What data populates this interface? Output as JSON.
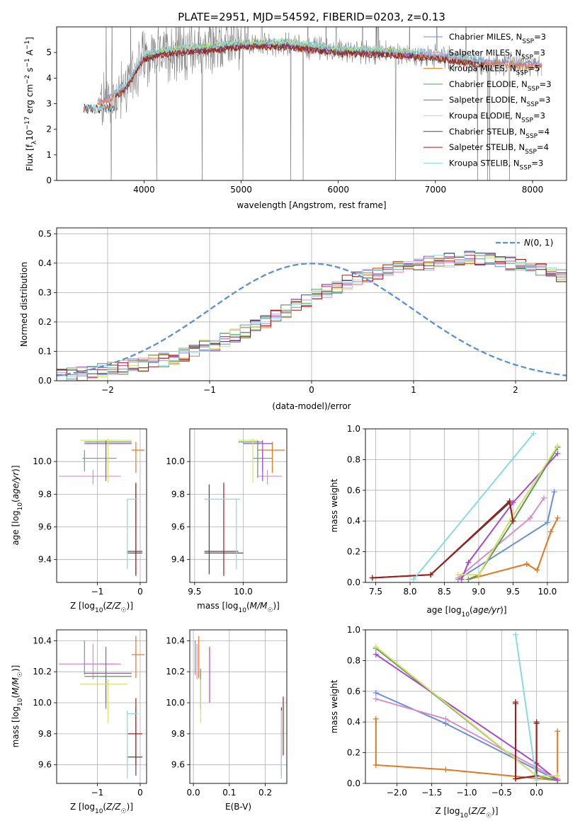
{
  "title": "PLATE=2951, MJD=54592, FIBERID=0203, z=0.13",
  "colors": {
    "Chabrier MILES": "#6a8fd6",
    "Salpeter MILES": "#d68ecb",
    "Kroupa MILES": "#e0781e",
    "Chabrier ELODIE": "#5a9a5a",
    "Salpeter ELODIE": "#a64ac9",
    "Kroupa ELODIE": "#d4e06a",
    "Chabrier STELIB": "#4a4a4a",
    "Salpeter STELIB": "#a21c1c",
    "Kroupa STELIB": "#86dbe0",
    "data": "#808080",
    "gaussian": "#5b8fd6"
  },
  "chart_data": [
    {
      "type": "line",
      "xlabel": "wavelength [Angstrom, rest frame]",
      "ylabel": "Flux [f_λ 10^-17 erg cm^-2 s^-1 A^-1]",
      "xlim": [
        3100,
        8350
      ],
      "ylim": [
        0,
        6
      ],
      "xticks": [
        4000,
        5000,
        6000,
        7000,
        8000
      ],
      "yticks": [
        0,
        1,
        2,
        3,
        4,
        5
      ],
      "grid": false,
      "legend_position": "top-right",
      "legend": [
        {
          "name": "Chabrier MILES",
          "n": "3"
        },
        {
          "name": "Salpeter MILES",
          "n": "3"
        },
        {
          "name": "Kroupa MILES",
          "n": "5"
        },
        {
          "name": "Chabrier ELODIE",
          "n": "3"
        },
        {
          "name": "Salpeter ELODIE",
          "n": "3"
        },
        {
          "name": "Kroupa ELODIE",
          "n": "3"
        },
        {
          "name": "Chabrier STELIB",
          "n": "4"
        },
        {
          "name": "Salpeter STELIB",
          "n": "4"
        },
        {
          "name": "Kroupa STELIB",
          "n": "3"
        }
      ],
      "data_range": [
        3550,
        8100
      ],
      "model_envelope": {
        "x": [
          3400,
          3600,
          3800,
          4000,
          4200,
          4500,
          4800,
          5000,
          5500,
          6000,
          6500,
          7000,
          7500,
          8100
        ],
        "y": [
          3.0,
          3.1,
          3.6,
          4.8,
          5.0,
          5.1,
          5.2,
          5.3,
          5.3,
          5.05,
          5.0,
          4.85,
          4.6,
          4.5
        ]
      }
    },
    {
      "type": "histogram",
      "xlabel": "(data-model)/error",
      "ylabel": "Normed distribution",
      "xlim": [
        -2.5,
        2.5
      ],
      "ylim": [
        0,
        0.52
      ],
      "xticks": [
        -2,
        -1,
        0,
        1,
        2
      ],
      "yticks": [
        0.0,
        0.1,
        0.2,
        0.3,
        0.4,
        0.5
      ],
      "grid": true,
      "legend_position": "top-right",
      "legend": [
        {
          "name": "N(0,1)"
        }
      ],
      "bin_width": 0.1,
      "base_density": [
        0.015,
        0.02,
        0.025,
        0.03,
        0.035,
        0.04,
        0.045,
        0.05,
        0.055,
        0.065,
        0.07,
        0.08,
        0.09,
        0.1,
        0.115,
        0.125,
        0.14,
        0.155,
        0.17,
        0.185,
        0.205,
        0.22,
        0.24,
        0.255,
        0.27,
        0.29,
        0.305,
        0.32,
        0.335,
        0.35,
        0.36,
        0.37,
        0.38,
        0.385,
        0.39,
        0.395,
        0.4,
        0.405,
        0.41,
        0.415,
        0.42,
        0.415,
        0.41,
        0.405,
        0.4,
        0.395,
        0.385,
        0.375,
        0.37,
        0.36,
        0.35,
        0.34,
        0.33,
        0.32,
        0.31,
        0.3,
        0.285,
        0.27,
        0.255,
        0.24,
        0.225,
        0.21,
        0.195,
        0.18,
        0.165,
        0.15,
        0.135,
        0.12,
        0.11,
        0.1,
        0.09,
        0.08,
        0.07,
        0.06,
        0.055,
        0.05,
        0.045,
        0.04,
        0.035,
        0.03
      ]
    },
    {
      "type": "errorbar",
      "xlabel": "Z [log10(Z/Z☉)]",
      "ylabel": "age  [log10(age/yr)]",
      "xlim": [
        -1.95,
        0.15
      ],
      "ylim": [
        9.26,
        10.2
      ],
      "xticks": [
        -1,
        0
      ],
      "yticks": [
        9.4,
        9.6,
        9.8,
        10.0
      ],
      "grid": true,
      "points": [
        {
          "model": "Chabrier MILES",
          "x": -1.3,
          "xlo": -1.35,
          "xhi": -0.55,
          "y": 10.02,
          "ylo": 9.94,
          "yhi": 10.07
        },
        {
          "model": "Salpeter MILES",
          "x": -1.1,
          "xlo": -1.9,
          "xhi": -0.45,
          "y": 9.91,
          "ylo": 9.86,
          "yhi": 9.95
        },
        {
          "model": "Kroupa MILES",
          "x": -0.1,
          "xlo": -0.2,
          "xhi": 0.1,
          "y": 10.07,
          "ylo": 9.93,
          "yhi": 10.12
        },
        {
          "model": "Chabrier ELODIE",
          "x": -0.8,
          "xlo": -1.3,
          "xhi": -0.2,
          "y": 10.12,
          "ylo": 9.9,
          "yhi": 10.13
        },
        {
          "model": "Salpeter ELODIE",
          "x": -0.8,
          "xlo": -1.3,
          "xhi": -0.2,
          "y": 10.11,
          "ylo": 9.88,
          "yhi": 10.13
        },
        {
          "model": "Kroupa ELODIE",
          "x": -0.75,
          "xlo": -1.4,
          "xhi": -0.2,
          "y": 10.13,
          "ylo": 9.87,
          "yhi": 10.14
        },
        {
          "model": "Chabrier STELIB",
          "x": -0.1,
          "xlo": -0.3,
          "xhi": 0.05,
          "y": 9.45,
          "ylo": 9.31,
          "yhi": 9.86
        },
        {
          "model": "Salpeter STELIB",
          "x": -0.1,
          "xlo": -0.3,
          "xhi": 0.05,
          "y": 9.44,
          "ylo": 9.3,
          "yhi": 9.87
        },
        {
          "model": "Kroupa STELIB",
          "x": -0.3,
          "xlo": -0.3,
          "xhi": -0.05,
          "y": 9.77,
          "ylo": 9.34,
          "yhi": 9.77
        }
      ]
    },
    {
      "type": "errorbar",
      "xlabel": "mass [log10(M/M☉)]",
      "ylabel": "",
      "xlim": [
        9.45,
        10.45
      ],
      "ylim": [
        9.26,
        10.2
      ],
      "xticks": [
        9.5,
        10.0
      ],
      "yticks": [
        9.4,
        9.6,
        9.8,
        10.0
      ],
      "grid": true,
      "points": [
        {
          "model": "Chabrier MILES",
          "x": 10.2,
          "xlo": 10.1,
          "xhi": 10.3,
          "y": 10.02,
          "ylo": 9.94,
          "yhi": 10.07
        },
        {
          "model": "Salpeter MILES",
          "x": 10.25,
          "xlo": 10.15,
          "xhi": 10.4,
          "y": 9.91,
          "ylo": 9.86,
          "yhi": 9.95
        },
        {
          "model": "Kroupa MILES",
          "x": 10.3,
          "xlo": 10.15,
          "xhi": 10.43,
          "y": 10.07,
          "ylo": 9.93,
          "yhi": 10.12
        },
        {
          "model": "Chabrier ELODIE",
          "x": 10.15,
          "xlo": 9.95,
          "xhi": 10.2,
          "y": 10.12,
          "ylo": 9.9,
          "yhi": 10.13
        },
        {
          "model": "Salpeter ELODIE",
          "x": 10.2,
          "xlo": 10.0,
          "xhi": 10.3,
          "y": 10.11,
          "ylo": 9.88,
          "yhi": 10.13
        },
        {
          "model": "Kroupa ELODIE",
          "x": 10.1,
          "xlo": 9.95,
          "xhi": 10.15,
          "y": 10.13,
          "ylo": 9.87,
          "yhi": 10.14
        },
        {
          "model": "Chabrier STELIB",
          "x": 9.65,
          "xlo": 9.6,
          "xhi": 9.95,
          "y": 9.45,
          "ylo": 9.31,
          "yhi": 9.86
        },
        {
          "model": "Salpeter STELIB",
          "x": 9.8,
          "xlo": 9.6,
          "xhi": 10.0,
          "y": 9.44,
          "ylo": 9.3,
          "yhi": 9.87
        },
        {
          "model": "Kroupa STELIB",
          "x": 9.93,
          "xlo": 9.6,
          "xhi": 9.97,
          "y": 9.77,
          "ylo": 9.34,
          "yhi": 9.77
        }
      ]
    },
    {
      "type": "line",
      "xlabel": "age  [log10(age/yr)]",
      "ylabel": "mass weight",
      "xlim": [
        7.35,
        10.3
      ],
      "ylim": [
        0.0,
        1.0
      ],
      "xticks": [
        7.5,
        8.0,
        8.5,
        9.0,
        9.5,
        10.0
      ],
      "yticks": [
        0.0,
        0.2,
        0.4,
        0.6,
        0.8,
        1.0
      ],
      "grid": true,
      "series": [
        {
          "model": "Chabrier MILES",
          "x": [
            8.7,
            10.0,
            10.1
          ],
          "y": [
            0.02,
            0.39,
            0.59
          ]
        },
        {
          "model": "Salpeter MILES",
          "x": [
            8.7,
            9.75,
            9.95
          ],
          "y": [
            0.03,
            0.42,
            0.55
          ]
        },
        {
          "model": "Kroupa MILES",
          "x": [
            8.85,
            9.7,
            9.85,
            10.05,
            10.15
          ],
          "y": [
            0.02,
            0.12,
            0.08,
            0.33,
            0.42
          ]
        },
        {
          "model": "Chabrier ELODIE",
          "x": [
            8.85,
            9.0,
            9.5,
            10.15
          ],
          "y": [
            0.02,
            0.05,
            0.4,
            0.88
          ]
        },
        {
          "model": "Salpeter ELODIE",
          "x": [
            8.75,
            8.85,
            9.5,
            10.15
          ],
          "y": [
            0.02,
            0.13,
            0.52,
            0.84
          ]
        },
        {
          "model": "Kroupa ELODIE",
          "x": [
            8.7,
            9.0,
            9.45,
            10.15
          ],
          "y": [
            0.05,
            0.05,
            0.4,
            0.89
          ]
        },
        {
          "model": "Chabrier STELIB",
          "x": [
            7.45,
            8.3,
            9.45,
            9.5
          ],
          "y": [
            0.03,
            0.05,
            0.52,
            0.4
          ]
        },
        {
          "model": "Salpeter STELIB",
          "x": [
            7.45,
            8.3,
            9.45,
            9.5
          ],
          "y": [
            0.03,
            0.05,
            0.53,
            0.4
          ]
        },
        {
          "model": "Kroupa STELIB",
          "x": [
            8.05,
            9.8
          ],
          "y": [
            0.02,
            0.97
          ]
        }
      ]
    },
    {
      "type": "errorbar",
      "xlabel": "Z [log10(Z/Z☉)]",
      "ylabel": "mass [log10(M/M☉)]",
      "xlim": [
        -1.95,
        0.15
      ],
      "ylim": [
        9.48,
        10.47
      ],
      "xticks": [
        -1,
        0
      ],
      "yticks": [
        9.6,
        9.8,
        10.0,
        10.2,
        10.4
      ],
      "grid": true,
      "points": [
        {
          "model": "Chabrier MILES",
          "x": -1.3,
          "xlo": -1.35,
          "xhi": -0.55,
          "y": 10.25,
          "ylo": 10.18,
          "yhi": 10.4
        },
        {
          "model": "Salpeter MILES",
          "x": -1.1,
          "xlo": -1.9,
          "xhi": -0.45,
          "y": 10.25,
          "ylo": 10.15,
          "yhi": 10.38
        },
        {
          "model": "Kroupa MILES",
          "x": -0.1,
          "xlo": -0.2,
          "xhi": 0.1,
          "y": 10.31,
          "ylo": 10.16,
          "yhi": 10.43
        },
        {
          "model": "Chabrier ELODIE",
          "x": -0.8,
          "xlo": -1.3,
          "xhi": -0.2,
          "y": 10.17,
          "ylo": 9.96,
          "yhi": 10.22
        },
        {
          "model": "Salpeter ELODIE",
          "x": -0.8,
          "xlo": -1.3,
          "xhi": -0.2,
          "y": 10.19,
          "ylo": 10.0,
          "yhi": 10.36
        },
        {
          "model": "Kroupa ELODIE",
          "x": -0.75,
          "xlo": -1.4,
          "xhi": -0.3,
          "y": 10.12,
          "ylo": 9.87,
          "yhi": 10.15
        },
        {
          "model": "Chabrier STELIB",
          "x": -0.1,
          "xlo": -0.3,
          "xhi": 0.05,
          "y": 9.65,
          "ylo": 9.53,
          "yhi": 9.97
        },
        {
          "model": "Salpeter STELIB",
          "x": -0.1,
          "xlo": -0.3,
          "xhi": 0.05,
          "y": 9.8,
          "ylo": 9.6,
          "yhi": 10.03
        },
        {
          "model": "Kroupa STELIB",
          "x": -0.3,
          "xlo": -0.3,
          "xhi": -0.05,
          "y": 9.93,
          "ylo": 9.51,
          "yhi": 9.95
        }
      ]
    },
    {
      "type": "errorbar",
      "xlabel": "E(B-V)",
      "ylabel": "",
      "xlim": [
        -0.01,
        0.26
      ],
      "ylim": [
        9.48,
        10.47
      ],
      "xticks": [
        0.0,
        0.1,
        0.2
      ],
      "yticks": [
        9.6,
        9.8,
        10.0,
        10.2,
        10.4
      ],
      "grid": true,
      "points": [
        {
          "model": "Chabrier MILES",
          "x": 0.005,
          "y": 10.25,
          "ylo": 10.18,
          "yhi": 10.4
        },
        {
          "model": "Salpeter MILES",
          "x": 0.01,
          "y": 10.25,
          "ylo": 10.15,
          "yhi": 10.38
        },
        {
          "model": "Kroupa MILES",
          "x": 0.015,
          "y": 10.31,
          "ylo": 10.16,
          "yhi": 10.43
        },
        {
          "model": "Chabrier ELODIE",
          "x": 0.02,
          "y": 10.17,
          "ylo": 9.96,
          "yhi": 10.22
        },
        {
          "model": "Salpeter ELODIE",
          "x": 0.045,
          "y": 10.19,
          "ylo": 10.0,
          "yhi": 10.36
        },
        {
          "model": "Kroupa ELODIE",
          "x": 0.02,
          "y": 10.12,
          "ylo": 9.87,
          "yhi": 10.15
        },
        {
          "model": "Chabrier STELIB",
          "x": 0.245,
          "y": 9.65,
          "ylo": 9.53,
          "yhi": 9.97
        },
        {
          "model": "Salpeter STELIB",
          "x": 0.25,
          "y": 9.8,
          "ylo": 9.66,
          "yhi": 10.04
        },
        {
          "model": "Kroupa STELIB",
          "x": 0.245,
          "y": 9.93,
          "ylo": 9.51,
          "yhi": 9.95
        }
      ]
    },
    {
      "type": "line",
      "xlabel": "Z [log10(Z/Z☉)]",
      "ylabel": "mass weight",
      "xlim": [
        -2.45,
        0.45
      ],
      "ylim": [
        0.0,
        1.0
      ],
      "xticks": [
        -2.0,
        -1.5,
        -1.0,
        -0.5,
        0.0
      ],
      "yticks": [
        0.0,
        0.2,
        0.4,
        0.6,
        0.8,
        1.0
      ],
      "grid": true,
      "series": [
        {
          "model": "Chabrier MILES",
          "x": [
            -2.3,
            -1.3,
            0.3
          ],
          "y": [
            0.59,
            0.39,
            0.02
          ]
        },
        {
          "model": "Salpeter MILES",
          "x": [
            -2.3,
            -1.3,
            0.3
          ],
          "y": [
            0.55,
            0.42,
            0.03
          ]
        },
        {
          "model": "Kroupa MILES",
          "x": [
            -2.3,
            -2.3,
            -1.3,
            0.3,
            0.3
          ],
          "y": [
            0.42,
            0.12,
            0.09,
            0.02,
            0.34
          ]
        },
        {
          "model": "Chabrier ELODIE",
          "x": [
            -2.3,
            0.0,
            0.3
          ],
          "y": [
            0.88,
            0.05,
            0.02
          ]
        },
        {
          "model": "Salpeter ELODIE",
          "x": [
            -2.3,
            0.0,
            0.3
          ],
          "y": [
            0.84,
            0.13,
            0.02
          ]
        },
        {
          "model": "Kroupa ELODIE",
          "x": [
            -2.3,
            0.0,
            0.3
          ],
          "y": [
            0.89,
            0.05,
            0.05
          ]
        },
        {
          "model": "Chabrier STELIB",
          "x": [
            -0.3,
            -0.3,
            0.0,
            0.0
          ],
          "y": [
            0.52,
            0.03,
            0.05,
            0.39
          ]
        },
        {
          "model": "Salpeter STELIB",
          "x": [
            -0.3,
            -0.3,
            0.0,
            0.0
          ],
          "y": [
            0.53,
            0.03,
            0.05,
            0.4
          ]
        },
        {
          "model": "Kroupa STELIB",
          "x": [
            -0.3,
            0.0
          ],
          "y": [
            0.97,
            0.02
          ]
        }
      ]
    }
  ]
}
